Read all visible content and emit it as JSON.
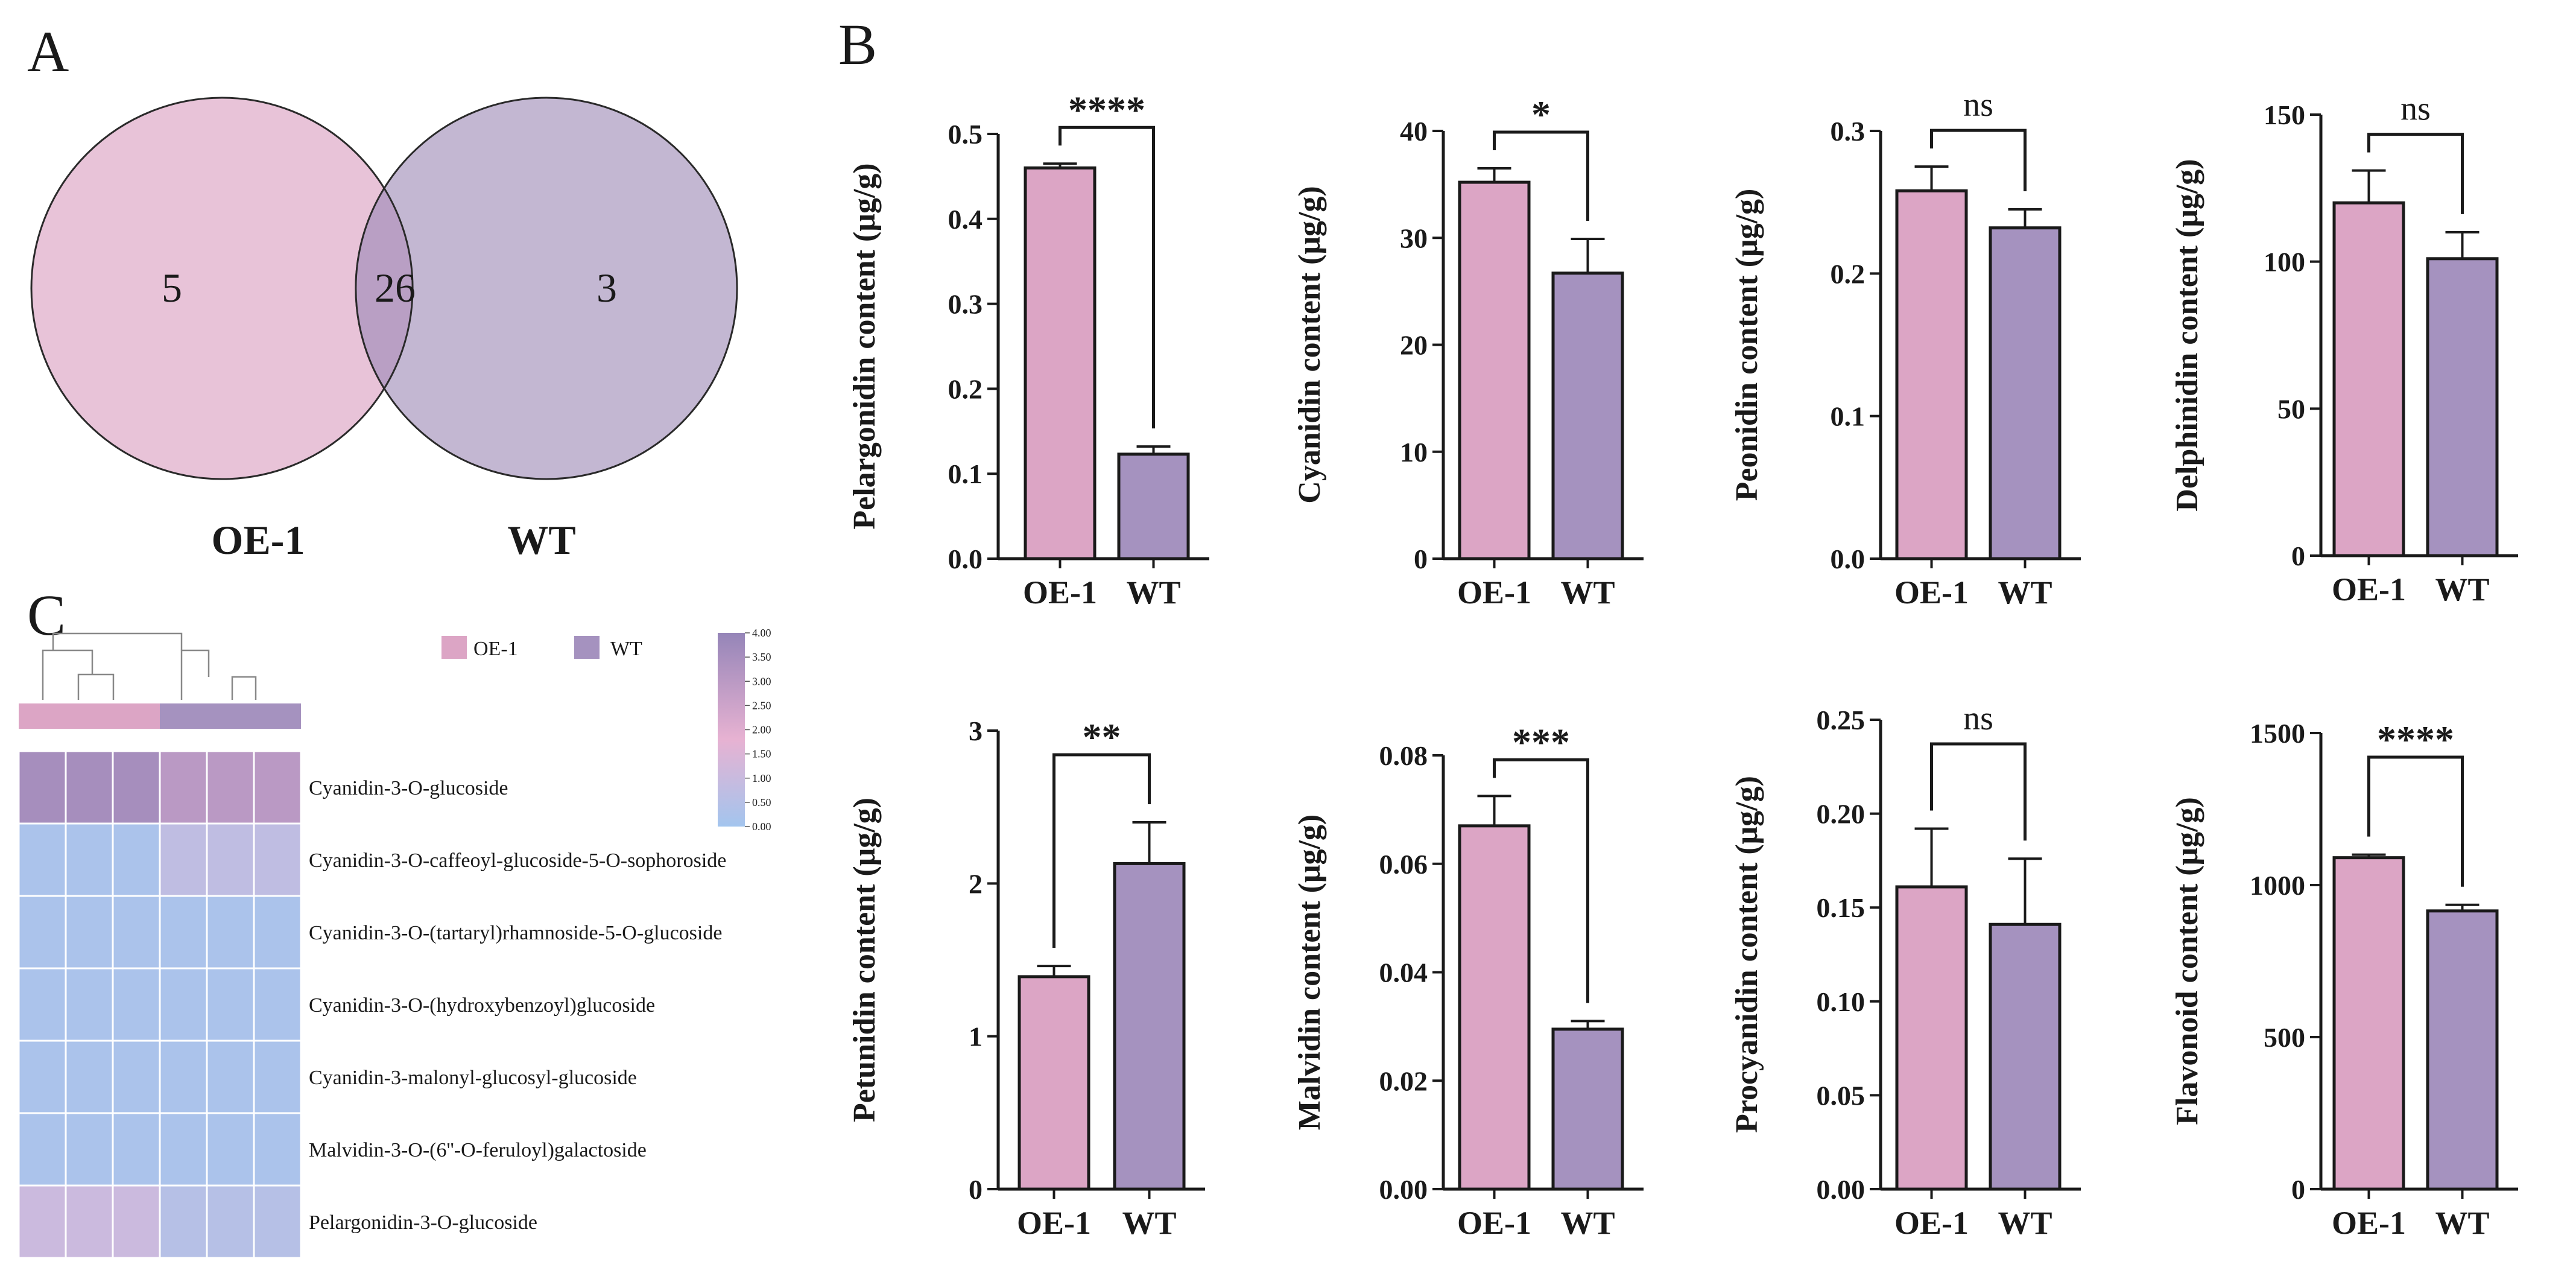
{
  "venn": {
    "panel_label": "A",
    "left_label": "OE-1",
    "right_label": "WT",
    "left_only": "5",
    "overlap": "26",
    "right_only": "3",
    "colors": {
      "left": "#e8c3d8",
      "right": "#c3b7d2",
      "overlap": "#b99fc4"
    }
  },
  "bars_panel_label": "B",
  "heatmap_panel_label": "C",
  "colors": {
    "oe": "#dca5c5",
    "wt": "#a592bf",
    "axis": "#1a1a1a"
  },
  "chart_data": [
    {
      "type": "bar",
      "ylabel": "Pelargonidin content (μg/g)",
      "categories": [
        "OE-1",
        "WT"
      ],
      "values": [
        0.46,
        0.123
      ],
      "errors": [
        0.005,
        0.009
      ],
      "ylim": [
        0,
        0.5
      ],
      "yticks": [
        "0.0",
        "0.1",
        "0.2",
        "0.3",
        "0.4",
        "0.5"
      ],
      "significance": "****"
    },
    {
      "type": "bar",
      "ylabel": "Cyanidin content (μg/g)",
      "categories": [
        "OE-1",
        "WT"
      ],
      "values": [
        35.2,
        26.7
      ],
      "errors": [
        1.3,
        3.2
      ],
      "ylim": [
        0,
        40
      ],
      "yticks": [
        "0",
        "10",
        "20",
        "30",
        "40"
      ],
      "significance": "*"
    },
    {
      "type": "bar",
      "ylabel": "Peonidin content (μg/g)",
      "categories": [
        "OE-1",
        "WT"
      ],
      "values": [
        0.258,
        0.232
      ],
      "errors": [
        0.017,
        0.013
      ],
      "ylim": [
        0,
        0.3
      ],
      "yticks": [
        "0.0",
        "0.1",
        "0.2",
        "0.3"
      ],
      "significance": "ns"
    },
    {
      "type": "bar",
      "ylabel": "Delphinidin content (μg/g)",
      "categories": [
        "OE-1",
        "WT"
      ],
      "values": [
        120,
        101
      ],
      "errors": [
        11,
        9
      ],
      "ylim": [
        0,
        150
      ],
      "yticks": [
        "0",
        "50",
        "100",
        "150"
      ],
      "significance": "ns"
    },
    {
      "type": "bar",
      "ylabel": "Petunidin content (μg/g)",
      "categories": [
        "OE-1",
        "WT"
      ],
      "values": [
        1.39,
        2.13
      ],
      "errors": [
        0.07,
        0.27
      ],
      "ylim": [
        0,
        3
      ],
      "yticks": [
        "0",
        "1",
        "2",
        "3"
      ],
      "significance": "**"
    },
    {
      "type": "bar",
      "ylabel": "Malvidin content (μg/g)",
      "categories": [
        "OE-1",
        "WT"
      ],
      "values": [
        0.067,
        0.0295
      ],
      "errors": [
        0.0055,
        0.0015
      ],
      "ylim": [
        0,
        0.08
      ],
      "yticks": [
        "0.00",
        "0.02",
        "0.04",
        "0.06",
        "0.08"
      ],
      "significance": "***"
    },
    {
      "type": "bar",
      "ylabel": "Procyanidin content (μg/g)",
      "categories": [
        "OE-1",
        "WT"
      ],
      "values": [
        0.161,
        0.141
      ],
      "errors": [
        0.031,
        0.035
      ],
      "ylim": [
        0,
        0.25
      ],
      "yticks": [
        "0.00",
        "0.05",
        "0.10",
        "0.15",
        "0.20",
        "0.25"
      ],
      "significance": "ns"
    },
    {
      "type": "bar",
      "ylabel": "Flavonoid content (μg/g)",
      "categories": [
        "OE-1",
        "WT"
      ],
      "values": [
        1090,
        915
      ],
      "errors": [
        10,
        20
      ],
      "ylim": [
        0,
        1500
      ],
      "yticks": [
        "0",
        "500",
        "1000",
        "1500"
      ],
      "significance": "****"
    },
    {
      "type": "heatmap",
      "groups": [
        "OE-1",
        "WT"
      ],
      "columns_per_group": 3,
      "rows": [
        "Cyanidin-3-O-glucoside",
        "Cyanidin-3-O-caffeoyl-glucoside-5-O-sophoroside",
        "Cyanidin-3-O-(tartaryl)rhamnoside-5-O-glucoside",
        "Cyanidin-3-O-(hydroxybenzoyl)glucoside",
        "Cyanidin-3-malonyl-glucosyl-glucoside",
        "Malvidin-3-O-(6''-O-feruloyl)galactoside",
        "Pelargonidin-3-O-glucoside"
      ],
      "values": [
        [
          3.55,
          3.55,
          3.55,
          3.0,
          3.0,
          3.0
        ],
        [
          0.2,
          0.2,
          0.2,
          0.75,
          0.75,
          0.75
        ],
        [
          0.2,
          0.2,
          0.2,
          0.2,
          0.2,
          0.2
        ],
        [
          0.2,
          0.2,
          0.2,
          0.2,
          0.2,
          0.2
        ],
        [
          0.2,
          0.2,
          0.2,
          0.2,
          0.2,
          0.2
        ],
        [
          0.2,
          0.2,
          0.2,
          0.2,
          0.2,
          0.2
        ],
        [
          1.05,
          1.05,
          1.05,
          0.5,
          0.5,
          0.5
        ]
      ],
      "scale_min": 0,
      "scale_max": 4,
      "scale_ticks": [
        "4.00",
        "3.50",
        "3.00",
        "2.50",
        "2.00",
        "1.50",
        "1.00",
        "0.50",
        "0.00"
      ],
      "color_stops": [
        "#a3c5ee",
        "#e7b2d2",
        "#9585b8"
      ]
    }
  ]
}
